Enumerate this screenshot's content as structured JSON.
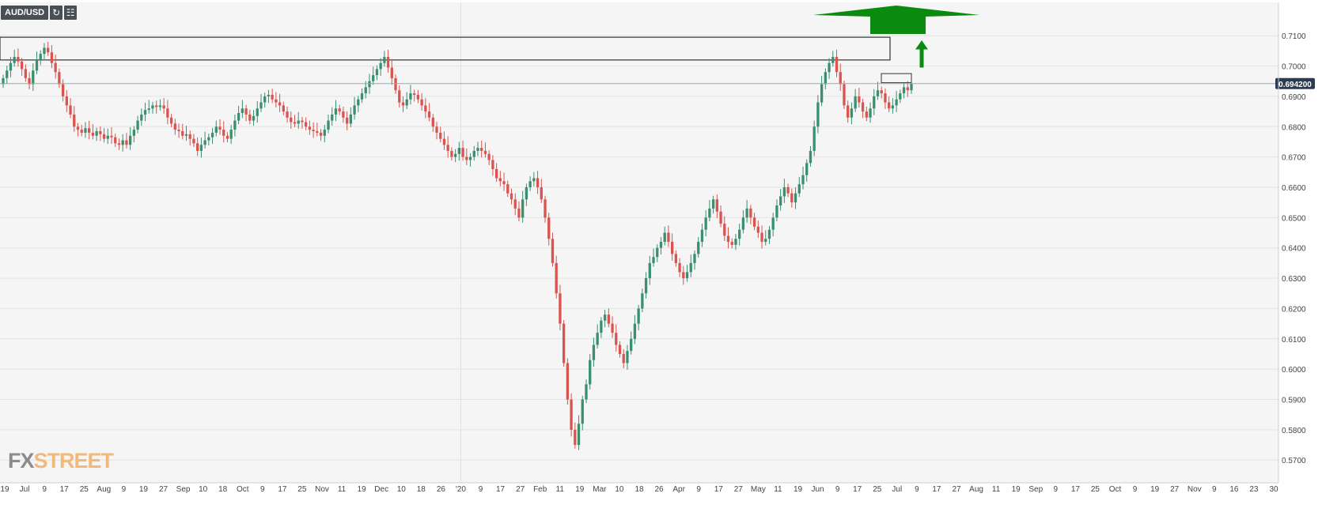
{
  "toolbar": {
    "symbol": "AUD/USD",
    "refresh_icon": "refresh-icon",
    "settings_icon": "chart-settings-icon"
  },
  "watermark": {
    "fx": "FX",
    "street": "STREET"
  },
  "colors": {
    "up": "#3a8f6e",
    "down": "#d9534f",
    "grid": "#e4e4e4",
    "plot_bg": "#f5f5f5",
    "axis_text": "#444444",
    "price_line": "#9aa6b2",
    "price_badge": "#2b3c50",
    "arrow": "#0b8a10"
  },
  "chart_data": {
    "type": "candlestick",
    "instrument": "AUD/USD",
    "timeframe": "daily",
    "current_price": "0.694200",
    "ylim": [
      0.5625,
      0.721
    ],
    "y_ticks": [
      "0.5700",
      "0.5800",
      "0.5900",
      "0.6000",
      "0.6100",
      "0.6200",
      "0.6300",
      "0.6400",
      "0.6500",
      "0.6600",
      "0.6700",
      "0.6800",
      "0.6900",
      "0.7000",
      "0.7100"
    ],
    "x_ticks": [
      "19",
      "Jul",
      "9",
      "17",
      "25",
      "Aug",
      "9",
      "19",
      "27",
      "Sep",
      "10",
      "18",
      "Oct",
      "9",
      "17",
      "25",
      "Nov",
      "11",
      "19",
      "Dec",
      "10",
      "18",
      "26",
      "'20",
      "9",
      "17",
      "27",
      "Feb",
      "11",
      "19",
      "Mar",
      "10",
      "18",
      "26",
      "Apr",
      "9",
      "17",
      "27",
      "May",
      "11",
      "19",
      "Jun",
      "9",
      "17",
      "25",
      "Jul",
      "9",
      "17",
      "27",
      "Aug",
      "11",
      "19",
      "Sep",
      "9",
      "17",
      "25",
      "Oct",
      "9",
      "19",
      "27",
      "Nov",
      "9",
      "16",
      "23",
      "30"
    ],
    "closes": [
      0.696,
      0.6985,
      0.701,
      0.703,
      0.7015,
      0.699,
      0.696,
      0.694,
      0.6985,
      0.702,
      0.704,
      0.706,
      0.7045,
      0.701,
      0.698,
      0.694,
      0.69,
      0.687,
      0.684,
      0.68,
      0.679,
      0.678,
      0.6795,
      0.678,
      0.677,
      0.6785,
      0.6775,
      0.676,
      0.677,
      0.6765,
      0.6745,
      0.674,
      0.6755,
      0.674,
      0.677,
      0.679,
      0.682,
      0.684,
      0.6855,
      0.686,
      0.687,
      0.6865,
      0.687,
      0.686,
      0.683,
      0.681,
      0.679,
      0.6785,
      0.677,
      0.6775,
      0.676,
      0.6745,
      0.672,
      0.674,
      0.6755,
      0.6765,
      0.678,
      0.68,
      0.679,
      0.677,
      0.676,
      0.679,
      0.682,
      0.6845,
      0.686,
      0.684,
      0.682,
      0.6835,
      0.686,
      0.688,
      0.69,
      0.6905,
      0.689,
      0.688,
      0.687,
      0.685,
      0.683,
      0.6815,
      0.681,
      0.682,
      0.6815,
      0.68,
      0.679,
      0.6785,
      0.678,
      0.677,
      0.679,
      0.682,
      0.684,
      0.686,
      0.685,
      0.683,
      0.681,
      0.684,
      0.687,
      0.689,
      0.691,
      0.693,
      0.695,
      0.697,
      0.699,
      0.701,
      0.703,
      0.6995,
      0.696,
      0.692,
      0.688,
      0.687,
      0.689,
      0.691,
      0.6905,
      0.689,
      0.687,
      0.685,
      0.683,
      0.68,
      0.678,
      0.676,
      0.674,
      0.672,
      0.67,
      0.671,
      0.673,
      0.67,
      0.669,
      0.67,
      0.672,
      0.673,
      0.672,
      0.671,
      0.669,
      0.666,
      0.663,
      0.662,
      0.661,
      0.658,
      0.656,
      0.653,
      0.65,
      0.656,
      0.66,
      0.662,
      0.663,
      0.66,
      0.656,
      0.65,
      0.643,
      0.635,
      0.625,
      0.615,
      0.602,
      0.59,
      0.58,
      0.575,
      0.582,
      0.59,
      0.595,
      0.603,
      0.608,
      0.612,
      0.616,
      0.618,
      0.615,
      0.612,
      0.608,
      0.605,
      0.602,
      0.606,
      0.61,
      0.615,
      0.62,
      0.625,
      0.63,
      0.635,
      0.637,
      0.64,
      0.642,
      0.645,
      0.642,
      0.638,
      0.635,
      0.632,
      0.63,
      0.632,
      0.635,
      0.638,
      0.642,
      0.646,
      0.65,
      0.653,
      0.656,
      0.652,
      0.648,
      0.644,
      0.642,
      0.641,
      0.643,
      0.646,
      0.65,
      0.653,
      0.65,
      0.647,
      0.645,
      0.642,
      0.643,
      0.646,
      0.65,
      0.654,
      0.657,
      0.66,
      0.658,
      0.655,
      0.658,
      0.661,
      0.664,
      0.668,
      0.672,
      0.68,
      0.688,
      0.694,
      0.698,
      0.701,
      0.703,
      0.698,
      0.694,
      0.687,
      0.683,
      0.686,
      0.69,
      0.688,
      0.685,
      0.683,
      0.686,
      0.69,
      0.692,
      0.691,
      0.688,
      0.686,
      0.687,
      0.689,
      0.691,
      0.693,
      0.692,
      0.6942
    ],
    "resistance_zone": [
      0.702,
      0.7095
    ],
    "small_box": [
      0.6945,
      0.6975
    ],
    "resistance_line": 0.6942,
    "annotations": [
      "upside target arrow"
    ],
    "grid": true
  }
}
